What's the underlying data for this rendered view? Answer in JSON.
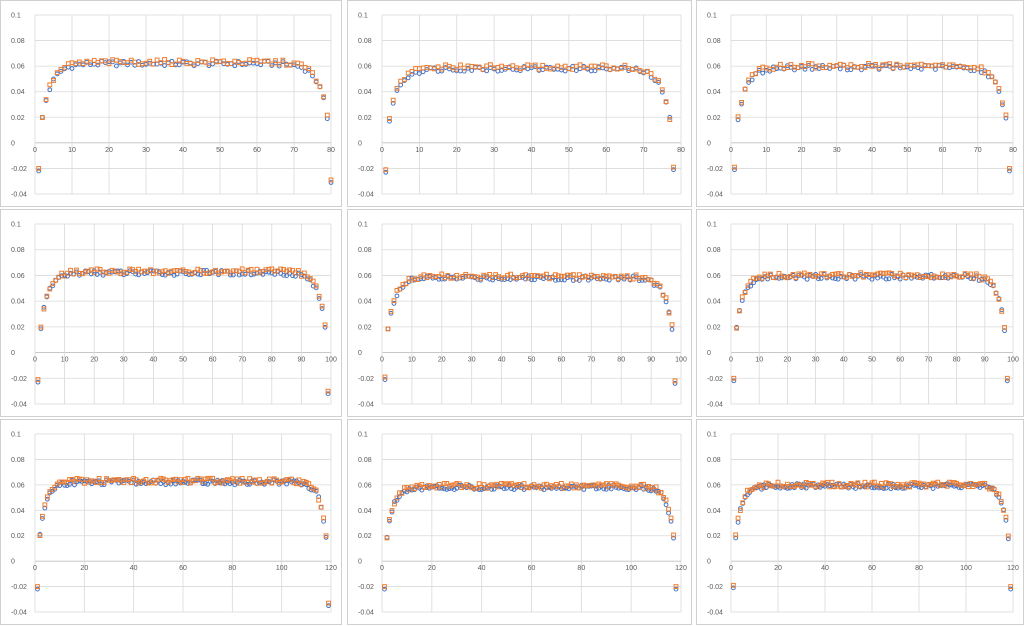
{
  "colors": {
    "series_a": "#4472c4",
    "series_b": "#ed7d31",
    "gridline": "#d9d9d9",
    "tick_text": "#595959"
  },
  "chart_data": [
    {
      "type": "scatter",
      "n": 80,
      "ylim": [
        -0.04,
        0.1
      ],
      "xlim": [
        0,
        80
      ],
      "yticks": [
        "0.1",
        "0.08",
        "0.06",
        "0.04",
        "0.02",
        "0",
        "-0.02",
        "-0.04"
      ],
      "xticks": [
        "0",
        "10",
        "20",
        "30",
        "40",
        "50",
        "60",
        "70",
        "80"
      ],
      "xtick_values": [
        0,
        10,
        20,
        30,
        40,
        50,
        60,
        70,
        80
      ],
      "plateau": 0.062,
      "edge_first": -0.022,
      "edge_last": -0.031,
      "series": [
        {
          "marker": "circle",
          "color": "#4472c4"
        },
        {
          "marker": "square",
          "color": "#ed7d31"
        }
      ]
    },
    {
      "type": "scatter",
      "n": 78,
      "ylim": [
        -0.04,
        0.1
      ],
      "xlim": [
        0,
        80
      ],
      "yticks": [
        "0.1",
        "0.08",
        "0.06",
        "0.04",
        "0.02",
        "0",
        "-0.02",
        "-0.04"
      ],
      "xticks": [
        "0",
        "10",
        "20",
        "30",
        "40",
        "50",
        "60",
        "70",
        "80"
      ],
      "xtick_values": [
        0,
        10,
        20,
        30,
        40,
        50,
        60,
        70,
        80
      ],
      "plateau": 0.058,
      "edge_first": -0.023,
      "edge_last": -0.021,
      "series": [
        {
          "marker": "circle",
          "color": "#4472c4"
        },
        {
          "marker": "square",
          "color": "#ed7d31"
        }
      ]
    },
    {
      "type": "scatter",
      "n": 79,
      "ylim": [
        -0.04,
        0.1
      ],
      "xlim": [
        0,
        80
      ],
      "yticks": [
        "0.1",
        "0.08",
        "0.06",
        "0.04",
        "0.02",
        "0",
        "-0.02",
        "-0.04"
      ],
      "xticks": [
        "0",
        "10",
        "20",
        "30",
        "40",
        "50",
        "60",
        "70",
        "80"
      ],
      "xtick_values": [
        0,
        10,
        20,
        30,
        40,
        50,
        60,
        70,
        80
      ],
      "plateau": 0.059,
      "edge_first": -0.021,
      "edge_last": -0.022,
      "series": [
        {
          "marker": "circle",
          "color": "#4472c4"
        },
        {
          "marker": "square",
          "color": "#ed7d31"
        }
      ]
    },
    {
      "type": "scatter",
      "n": 99,
      "ylim": [
        -0.04,
        0.1
      ],
      "xlim": [
        0,
        100
      ],
      "yticks": [
        "0.1",
        "0.08",
        "0.06",
        "0.04",
        "0.02",
        "0",
        "-0.02",
        "-0.04"
      ],
      "xticks": [
        "0",
        "10",
        "20",
        "30",
        "40",
        "50",
        "60",
        "70",
        "80",
        "90",
        "100"
      ],
      "xtick_values": [
        0,
        10,
        20,
        30,
        40,
        50,
        60,
        70,
        80,
        90,
        100
      ],
      "plateau": 0.062,
      "edge_first": -0.023,
      "edge_last": -0.032,
      "series": [
        {
          "marker": "circle",
          "color": "#4472c4"
        },
        {
          "marker": "square",
          "color": "#ed7d31"
        }
      ]
    },
    {
      "type": "scatter",
      "n": 98,
      "ylim": [
        -0.04,
        0.1
      ],
      "xlim": [
        0,
        100
      ],
      "yticks": [
        "0.1",
        "0.08",
        "0.06",
        "0.04",
        "0.02",
        "0",
        "-0.02",
        "-0.04"
      ],
      "xticks": [
        "0",
        "10",
        "20",
        "30",
        "40",
        "50",
        "60",
        "70",
        "80",
        "90",
        "100"
      ],
      "xtick_values": [
        0,
        10,
        20,
        30,
        40,
        50,
        60,
        70,
        80,
        90,
        100
      ],
      "plateau": 0.058,
      "edge_first": -0.021,
      "edge_last": -0.024,
      "series": [
        {
          "marker": "circle",
          "color": "#4472c4"
        },
        {
          "marker": "square",
          "color": "#ed7d31"
        }
      ]
    },
    {
      "type": "scatter",
      "n": 98,
      "ylim": [
        -0.04,
        0.1
      ],
      "xlim": [
        0,
        100
      ],
      "yticks": [
        "0.1",
        "0.08",
        "0.06",
        "0.04",
        "0.02",
        "0",
        "-0.02",
        "-0.04"
      ],
      "xticks": [
        "0",
        "10",
        "20",
        "30",
        "40",
        "50",
        "60",
        "70",
        "80",
        "90",
        "100"
      ],
      "xtick_values": [
        0,
        10,
        20,
        30,
        40,
        50,
        60,
        70,
        80,
        90,
        100
      ],
      "plateau": 0.059,
      "edge_first": -0.022,
      "edge_last": -0.022,
      "series": [
        {
          "marker": "circle",
          "color": "#4472c4"
        },
        {
          "marker": "square",
          "color": "#ed7d31"
        }
      ]
    },
    {
      "type": "scatter",
      "n": 119,
      "ylim": [
        -0.04,
        0.1
      ],
      "xlim": [
        0,
        120
      ],
      "yticks": [
        "0.1",
        "0.08",
        "0.06",
        "0.04",
        "0.02",
        "0",
        "-0.02",
        "-0.04"
      ],
      "xticks": [
        "0",
        "20",
        "40",
        "60",
        "80",
        "100",
        "120"
      ],
      "xtick_values": [
        0,
        20,
        40,
        60,
        80,
        100,
        120
      ],
      "plateau": 0.062,
      "edge_first": -0.022,
      "edge_last": -0.035,
      "series": [
        {
          "marker": "circle",
          "color": "#4472c4"
        },
        {
          "marker": "square",
          "color": "#ed7d31"
        }
      ]
    },
    {
      "type": "scatter",
      "n": 118,
      "ylim": [
        -0.04,
        0.1
      ],
      "xlim": [
        0,
        120
      ],
      "yticks": [
        "0.1",
        "0.08",
        "0.06",
        "0.04",
        "0.02",
        "0",
        "-0.02",
        "-0.04"
      ],
      "xticks": [
        "0",
        "20",
        "40",
        "60",
        "80",
        "100",
        "120"
      ],
      "xtick_values": [
        0,
        20,
        40,
        60,
        80,
        100,
        120
      ],
      "plateau": 0.058,
      "edge_first": -0.022,
      "edge_last": -0.022,
      "series": [
        {
          "marker": "circle",
          "color": "#4472c4"
        },
        {
          "marker": "square",
          "color": "#ed7d31"
        }
      ]
    },
    {
      "type": "scatter",
      "n": 119,
      "ylim": [
        -0.04,
        0.1
      ],
      "xlim": [
        0,
        120
      ],
      "yticks": [
        "0.1",
        "0.08",
        "0.06",
        "0.04",
        "0.02",
        "0",
        "-0.02",
        "-0.04"
      ],
      "xticks": [
        "0",
        "20",
        "40",
        "60",
        "80",
        "100",
        "120"
      ],
      "xtick_values": [
        0,
        20,
        40,
        60,
        80,
        100,
        120
      ],
      "plateau": 0.059,
      "edge_first": -0.021,
      "edge_last": -0.022,
      "series": [
        {
          "marker": "circle",
          "color": "#4472c4"
        },
        {
          "marker": "square",
          "color": "#ed7d31"
        }
      ]
    }
  ]
}
